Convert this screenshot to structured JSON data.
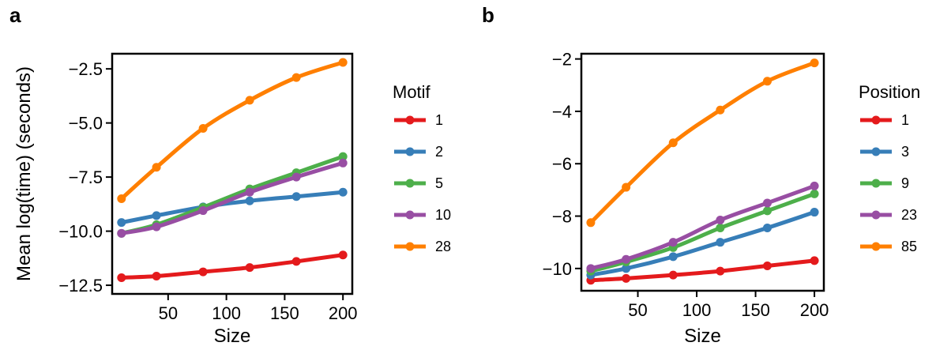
{
  "chart_data": [
    {
      "type": "line",
      "panel_label": "a",
      "xlabel": "Size",
      "ylabel": "Mean log(time) (seconds)",
      "xlim": [
        2,
        208
      ],
      "ylim": [
        -12.9,
        -1.8
      ],
      "x_ticks": [
        50,
        100,
        150,
        200
      ],
      "x_tick_labels": [
        "50",
        "100",
        "150",
        "200"
      ],
      "y_ticks": [
        -12.5,
        -10,
        -7.5,
        -5,
        -2.5
      ],
      "y_tick_labels": [
        "−12.5",
        "−10.0",
        "−7.5",
        "−5.0",
        "−2.5"
      ],
      "grid": false,
      "legend_title": "Motif",
      "legend_position": "right",
      "x": [
        10,
        40,
        80,
        120,
        160,
        200
      ],
      "series": [
        {
          "name": "1",
          "color": "#e41a1c",
          "values": [
            -12.15,
            -12.08,
            -11.88,
            -11.68,
            -11.4,
            -11.1
          ]
        },
        {
          "name": "2",
          "color": "#377eb8",
          "values": [
            -9.6,
            -9.28,
            -8.88,
            -8.6,
            -8.4,
            -8.2
          ]
        },
        {
          "name": "5",
          "color": "#4daf4a",
          "values": [
            -10.1,
            -9.7,
            -8.9,
            -8.05,
            -7.3,
            -6.55
          ]
        },
        {
          "name": "10",
          "color": "#984ea3",
          "values": [
            -10.1,
            -9.8,
            -9.05,
            -8.2,
            -7.5,
            -6.85
          ]
        },
        {
          "name": "28",
          "color": "#ff7f00",
          "values": [
            -8.5,
            -7.05,
            -5.25,
            -3.95,
            -2.9,
            -2.2
          ]
        }
      ]
    },
    {
      "type": "line",
      "panel_label": "b",
      "xlabel": "Size",
      "ylabel": "",
      "xlim": [
        2,
        208
      ],
      "ylim": [
        -10.85,
        -1.8
      ],
      "x_ticks": [
        50,
        100,
        150,
        200
      ],
      "x_tick_labels": [
        "50",
        "100",
        "150",
        "200"
      ],
      "y_ticks": [
        -10,
        -8,
        -6,
        -4,
        -2
      ],
      "y_tick_labels": [
        "−10",
        "−8",
        "−6",
        "−4",
        "−2"
      ],
      "grid": false,
      "legend_title": "Position",
      "legend_position": "right",
      "x": [
        10,
        40,
        80,
        120,
        160,
        200
      ],
      "series": [
        {
          "name": "1",
          "color": "#e41a1c",
          "values": [
            -10.45,
            -10.38,
            -10.25,
            -10.1,
            -9.9,
            -9.7
          ]
        },
        {
          "name": "3",
          "color": "#377eb8",
          "values": [
            -10.25,
            -10.0,
            -9.55,
            -9.0,
            -8.45,
            -7.85
          ]
        },
        {
          "name": "9",
          "color": "#4daf4a",
          "values": [
            -10.1,
            -9.75,
            -9.2,
            -8.45,
            -7.8,
            -7.15
          ]
        },
        {
          "name": "23",
          "color": "#984ea3",
          "values": [
            -10.0,
            -9.65,
            -9.0,
            -8.15,
            -7.5,
            -6.85
          ]
        },
        {
          "name": "85",
          "color": "#ff7f00",
          "values": [
            -8.25,
            -6.9,
            -5.2,
            -3.95,
            -2.85,
            -2.15
          ]
        }
      ]
    }
  ]
}
